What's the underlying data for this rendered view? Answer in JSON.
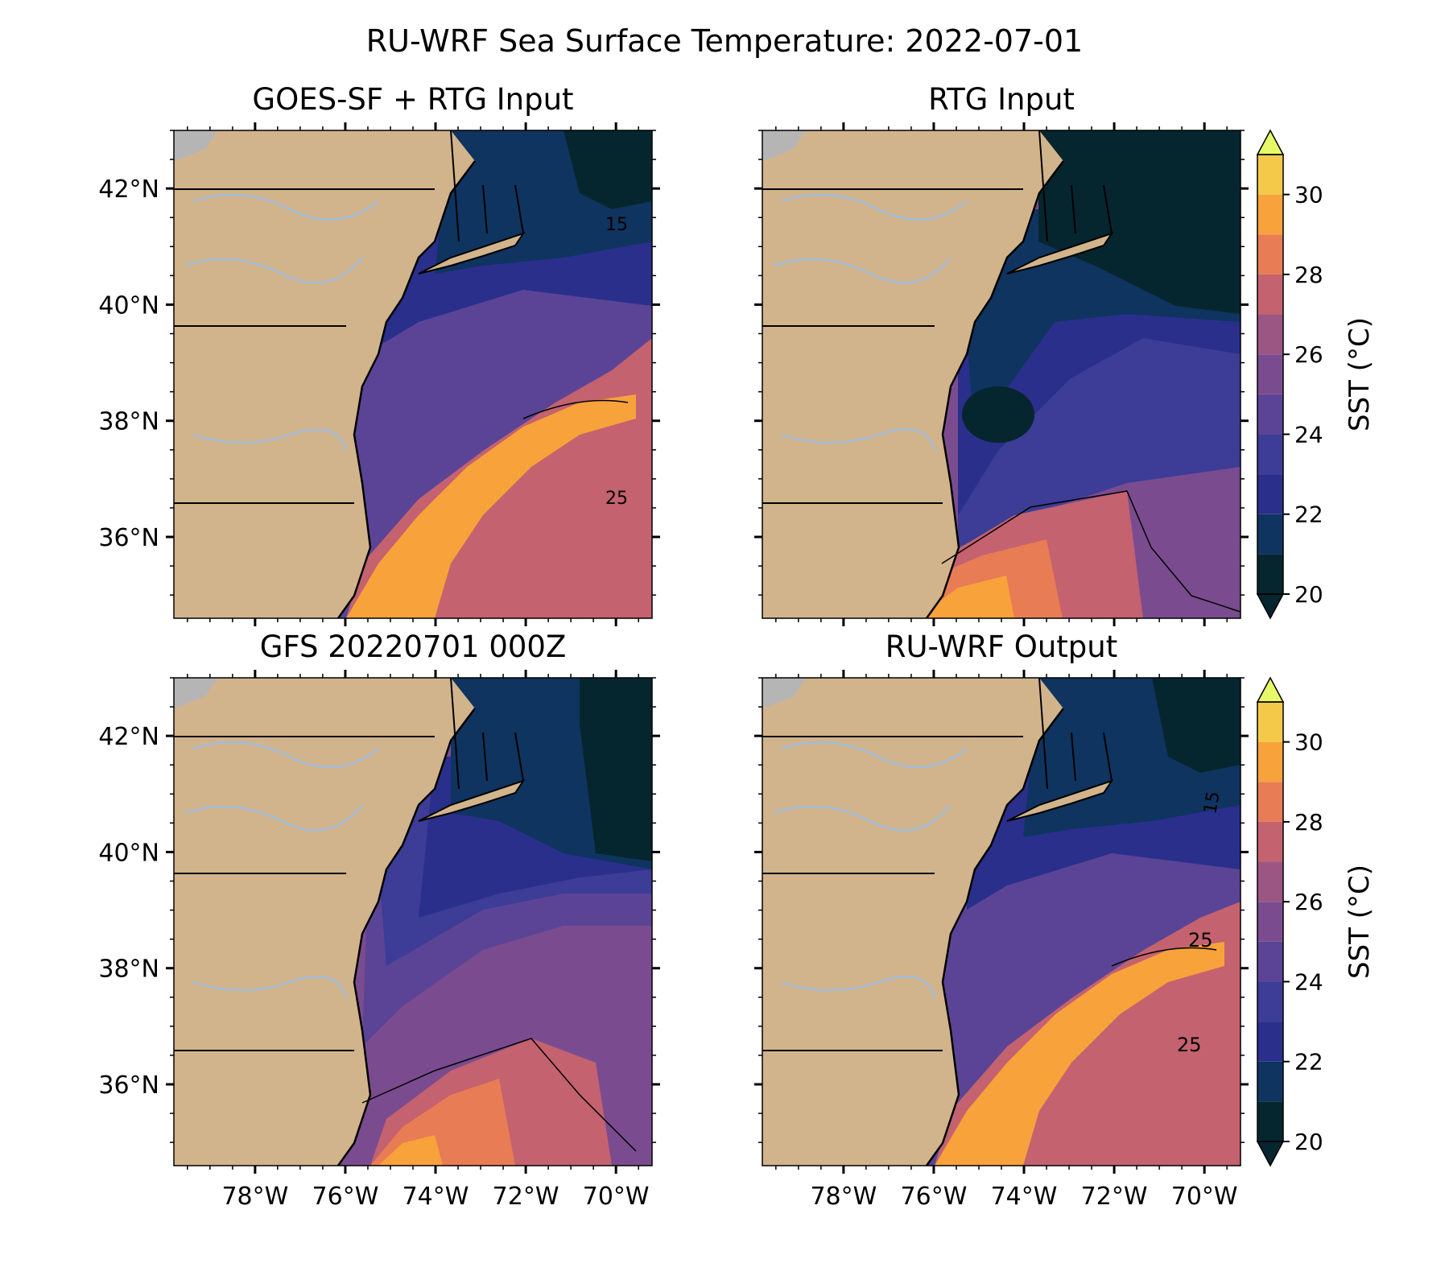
{
  "figure": {
    "suptitle": "RU-WRF Sea Surface Temperature: 2022-07-01"
  },
  "panels": [
    {
      "id": "goes-rtg",
      "title": "GOES-SF + RTG Input"
    },
    {
      "id": "rtg",
      "title": "RTG Input"
    },
    {
      "id": "gfs",
      "title": "GFS 20220701 000Z"
    },
    {
      "id": "ruwrf",
      "title": "RU-WRF Output"
    }
  ],
  "axes": {
    "lat_ticks": [
      "42°N",
      "40°N",
      "38°N",
      "36°N"
    ],
    "lon_ticks": [
      "78°W",
      "76°W",
      "74°W",
      "72°W",
      "70°W"
    ],
    "lat_values": [
      42,
      40,
      38,
      36
    ],
    "lon_values": [
      -78,
      -76,
      -74,
      -72,
      -70
    ],
    "extent": {
      "lon_min": -79.8,
      "lon_max": -69.2,
      "lat_min": 34.6,
      "lat_max": 43.0
    }
  },
  "colorbar": {
    "label": "SST (°C)",
    "tick_labels": [
      "20",
      "22",
      "24",
      "26",
      "28",
      "30"
    ],
    "tick_values": [
      20,
      22,
      24,
      26,
      28,
      30
    ],
    "range": [
      20,
      31
    ],
    "levels": [
      20,
      21,
      22,
      23,
      24,
      25,
      26,
      27,
      28,
      29,
      30,
      31
    ],
    "colors": [
      "#06262f",
      "#0f3460",
      "#2a2f8c",
      "#3d3c96",
      "#5b4496",
      "#7a4c8f",
      "#9b5684",
      "#c4626f",
      "#e87c55",
      "#f7a23b",
      "#f4c94a",
      "#e8f968"
    ],
    "extend": "both"
  },
  "contour_labels": {
    "goes-rtg": [
      "15",
      "25"
    ],
    "rtg": [],
    "gfs": [],
    "ruwrf": [
      "15",
      "25",
      "25"
    ]
  },
  "land_color": "#d2b48c",
  "lake_color": "#a3bcd9",
  "canada_color": "#b5b5b5"
}
